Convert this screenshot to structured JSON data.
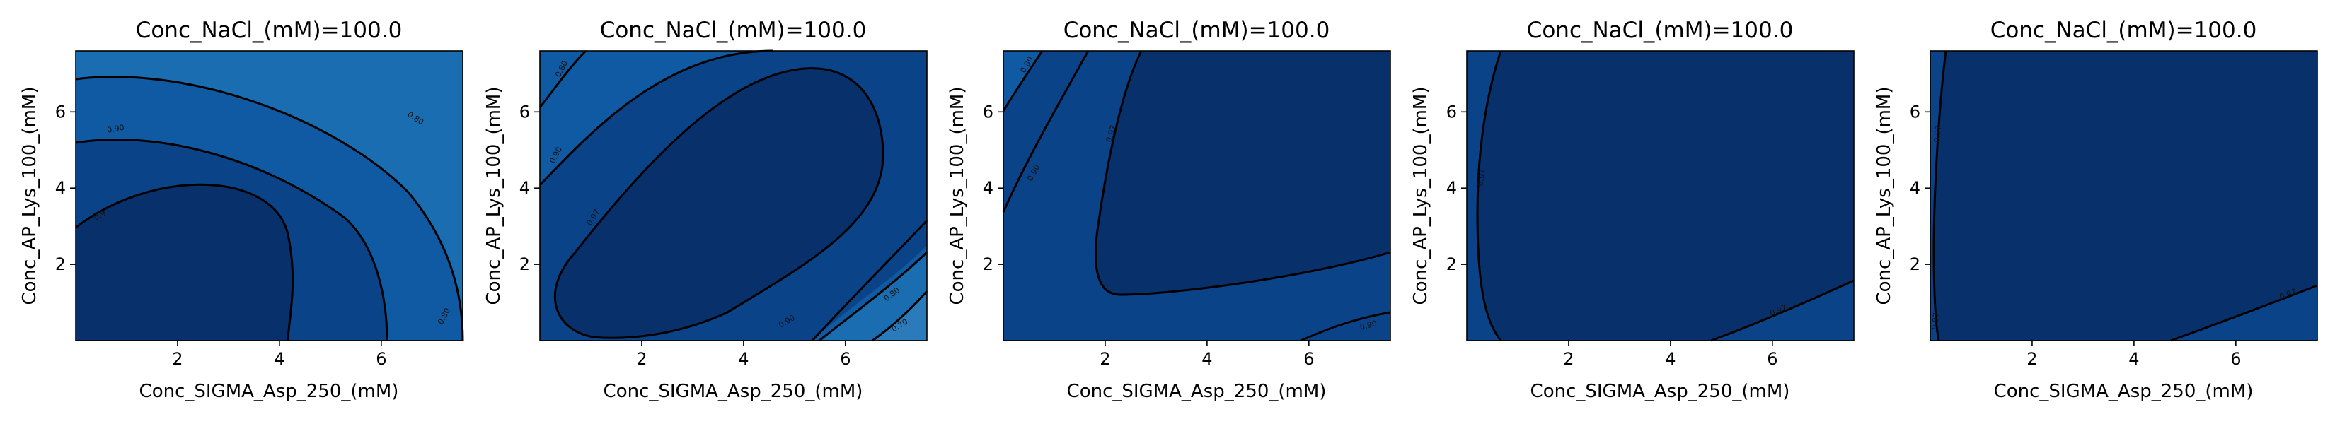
{
  "figure": {
    "colors": {
      "level_1": "#08306b",
      "level_2": "#0b4389",
      "level_3": "#0f5aa3",
      "level_4": "#1a6db1",
      "level_5": "#2b7bba",
      "contour_line": "#000000"
    }
  },
  "chart_data": [
    {
      "type": "contour",
      "title": "Conc_NaCl_(mM)=100.0",
      "xlabel": "Conc_SIGMA_Asp_250_(mM)",
      "ylabel": "Conc_AP_Lys_100_(mM)",
      "xlim": [
        0,
        7.6
      ],
      "ylim": [
        0,
        7.6
      ],
      "xticks": [
        "2",
        "4",
        "6"
      ],
      "yticks": [
        "2",
        "4",
        "6"
      ],
      "contour_labels": [
        "0.97",
        "0.90",
        "0.80",
        "0.80"
      ]
    },
    {
      "type": "contour",
      "title": "Conc_NaCl_(mM)=100.0",
      "xlabel": "Conc_SIGMA_Asp_250_(mM)",
      "ylabel": "Conc_AP_Lys_100_(mM)",
      "xlim": [
        0,
        7.6
      ],
      "ylim": [
        0,
        7.6
      ],
      "xticks": [
        "2",
        "4",
        "6"
      ],
      "yticks": [
        "2",
        "4",
        "6"
      ],
      "contour_labels": [
        "0.80",
        "0.90",
        "0.97",
        "0.90",
        "0.80",
        "0.70"
      ]
    },
    {
      "type": "contour",
      "title": "Conc_NaCl_(mM)=100.0",
      "xlabel": "Conc_SIGMA_Asp_250_(mM)",
      "ylabel": "Conc_AP_Lys_100_(mM)",
      "xlim": [
        0,
        7.6
      ],
      "ylim": [
        0,
        7.6
      ],
      "xticks": [
        "2",
        "4",
        "6"
      ],
      "yticks": [
        "2",
        "4",
        "6"
      ],
      "contour_labels": [
        "0.80",
        "0.90",
        "0.97",
        "0.90"
      ]
    },
    {
      "type": "contour",
      "title": "Conc_NaCl_(mM)=100.0",
      "xlabel": "Conc_SIGMA_Asp_250_(mM)",
      "ylabel": "Conc_AP_Lys_100_(mM)",
      "xlim": [
        0,
        7.6
      ],
      "ylim": [
        0,
        7.6
      ],
      "xticks": [
        "2",
        "4",
        "6"
      ],
      "yticks": [
        "2",
        "4",
        "6"
      ],
      "contour_labels": [
        "0.97",
        "0.97"
      ]
    },
    {
      "type": "contour",
      "title": "Conc_NaCl_(mM)=100.0",
      "xlabel": "Conc_SIGMA_Asp_250_(mM)",
      "ylabel": "Conc_AP_Lys_100_(mM)",
      "xlim": [
        0,
        7.6
      ],
      "ylim": [
        0,
        7.6
      ],
      "xticks": [
        "2",
        "4",
        "6"
      ],
      "yticks": [
        "2",
        "4",
        "6"
      ],
      "contour_labels": [
        "0.97",
        "0.97",
        "0.97"
      ]
    }
  ]
}
